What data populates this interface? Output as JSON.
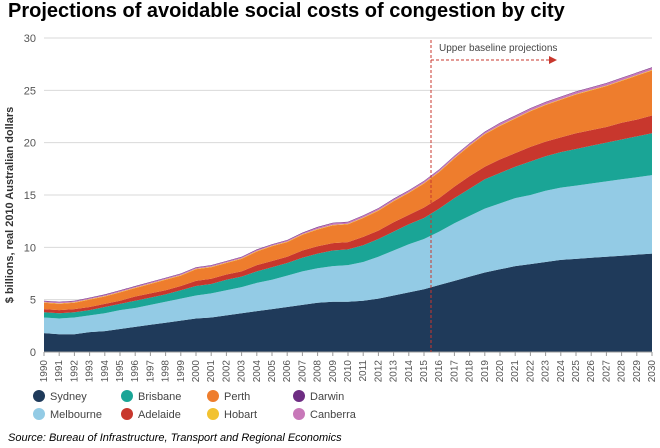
{
  "title": "Projections of avoidable social costs of congestion by city",
  "source": "Source: Bureau of Infrastructure, Transport and Regional Economics",
  "chart_data": {
    "type": "area",
    "stacked": true,
    "ylabel": "$ billions, real 2010 Australian dollars",
    "ylim": [
      0,
      30
    ],
    "yticks": [
      0,
      5,
      10,
      15,
      20,
      25,
      30
    ],
    "grid": true,
    "annotation": {
      "text": "Upper baseline projections",
      "x": "2015"
    },
    "x": [
      "1990",
      "1991",
      "1992",
      "1993",
      "1994",
      "1995",
      "1996",
      "1997",
      "1998",
      "1999",
      "2000",
      "2001",
      "2002",
      "2003",
      "2004",
      "2005",
      "2006",
      "2007",
      "2008",
      "2009",
      "2010",
      "2011",
      "2012",
      "2013",
      "2014",
      "2015",
      "2016",
      "2017",
      "2018",
      "2019",
      "2020",
      "2021",
      "2022",
      "2023",
      "2024",
      "2025",
      "2026",
      "2027",
      "2028",
      "2029",
      "2030"
    ],
    "series": [
      {
        "name": "Sydney",
        "color": "#1f3a5a",
        "values": [
          1.8,
          1.7,
          1.7,
          1.9,
          2.0,
          2.2,
          2.4,
          2.6,
          2.8,
          3.0,
          3.2,
          3.3,
          3.5,
          3.7,
          3.9,
          4.1,
          4.3,
          4.5,
          4.7,
          4.8,
          4.8,
          4.9,
          5.1,
          5.4,
          5.7,
          6.0,
          6.4,
          6.8,
          7.2,
          7.6,
          7.9,
          8.2,
          8.4,
          8.6,
          8.8,
          8.9,
          9.0,
          9.1,
          9.2,
          9.3,
          9.4
        ]
      },
      {
        "name": "Melbourne",
        "color": "#93cbe5",
        "values": [
          1.5,
          1.5,
          1.6,
          1.6,
          1.7,
          1.8,
          1.8,
          1.9,
          2.0,
          2.1,
          2.2,
          2.3,
          2.4,
          2.5,
          2.7,
          2.8,
          3.0,
          3.2,
          3.3,
          3.4,
          3.5,
          3.7,
          4.0,
          4.3,
          4.6,
          4.8,
          5.1,
          5.5,
          5.8,
          6.1,
          6.3,
          6.5,
          6.6,
          6.8,
          6.9,
          7.0,
          7.1,
          7.2,
          7.3,
          7.4,
          7.5
        ]
      },
      {
        "name": "Brisbane",
        "color": "#1aa596",
        "values": [
          0.5,
          0.5,
          0.5,
          0.5,
          0.6,
          0.6,
          0.7,
          0.7,
          0.7,
          0.8,
          0.9,
          0.9,
          1.0,
          1.0,
          1.1,
          1.2,
          1.2,
          1.3,
          1.4,
          1.5,
          1.5,
          1.6,
          1.7,
          1.8,
          1.9,
          2.0,
          2.2,
          2.4,
          2.6,
          2.8,
          2.9,
          3.0,
          3.2,
          3.3,
          3.4,
          3.5,
          3.6,
          3.7,
          3.8,
          3.9,
          4.0
        ]
      },
      {
        "name": "Adelaide",
        "color": "#c8372d",
        "values": [
          0.3,
          0.3,
          0.3,
          0.3,
          0.3,
          0.3,
          0.4,
          0.4,
          0.4,
          0.4,
          0.5,
          0.5,
          0.5,
          0.5,
          0.6,
          0.6,
          0.6,
          0.7,
          0.7,
          0.7,
          0.7,
          0.8,
          0.8,
          0.9,
          0.9,
          1.0,
          1.0,
          1.1,
          1.2,
          1.2,
          1.3,
          1.3,
          1.4,
          1.4,
          1.4,
          1.5,
          1.5,
          1.5,
          1.6,
          1.6,
          1.7
        ]
      },
      {
        "name": "Perth",
        "color": "#ee7d2d",
        "values": [
          0.6,
          0.6,
          0.6,
          0.7,
          0.7,
          0.8,
          0.8,
          0.9,
          1.0,
          1.0,
          1.1,
          1.1,
          1.1,
          1.2,
          1.3,
          1.4,
          1.4,
          1.5,
          1.6,
          1.7,
          1.7,
          1.8,
          1.9,
          2.0,
          2.1,
          2.3,
          2.5,
          2.7,
          2.9,
          3.1,
          3.2,
          3.3,
          3.4,
          3.5,
          3.6,
          3.7,
          3.8,
          3.9,
          4.0,
          4.2,
          4.3
        ]
      },
      {
        "name": "Hobart",
        "color": "#f2c230",
        "values": [
          0.05,
          0.05,
          0.05,
          0.05,
          0.05,
          0.05,
          0.05,
          0.05,
          0.05,
          0.05,
          0.05,
          0.05,
          0.05,
          0.05,
          0.05,
          0.05,
          0.05,
          0.05,
          0.05,
          0.05,
          0.05,
          0.05,
          0.05,
          0.05,
          0.05,
          0.05,
          0.05,
          0.05,
          0.05,
          0.05,
          0.05,
          0.05,
          0.05,
          0.05,
          0.05,
          0.05,
          0.05,
          0.05,
          0.05,
          0.05,
          0.05
        ]
      },
      {
        "name": "Canberra",
        "color": "#c878b9",
        "values": [
          0.1,
          0.1,
          0.1,
          0.1,
          0.1,
          0.1,
          0.1,
          0.1,
          0.1,
          0.1,
          0.1,
          0.1,
          0.1,
          0.1,
          0.1,
          0.1,
          0.1,
          0.1,
          0.15,
          0.15,
          0.15,
          0.15,
          0.15,
          0.15,
          0.15,
          0.15,
          0.15,
          0.15,
          0.15,
          0.15,
          0.2,
          0.2,
          0.2,
          0.2,
          0.2,
          0.2,
          0.2,
          0.2,
          0.2,
          0.2,
          0.2
        ]
      },
      {
        "name": "Darwin",
        "color": "#6e2d83",
        "values": [
          0.05,
          0.05,
          0.05,
          0.05,
          0.05,
          0.05,
          0.05,
          0.05,
          0.05,
          0.05,
          0.05,
          0.05,
          0.05,
          0.05,
          0.05,
          0.05,
          0.05,
          0.05,
          0.05,
          0.05,
          0.05,
          0.05,
          0.05,
          0.05,
          0.05,
          0.05,
          0.05,
          0.05,
          0.05,
          0.05,
          0.05,
          0.05,
          0.05,
          0.05,
          0.05,
          0.05,
          0.05,
          0.05,
          0.05,
          0.05,
          0.05
        ]
      }
    ],
    "legend": [
      {
        "name": "Sydney",
        "color": "#1f3a5a"
      },
      {
        "name": "Brisbane",
        "color": "#1aa596"
      },
      {
        "name": "Perth",
        "color": "#ee7d2d"
      },
      {
        "name": "Darwin",
        "color": "#6e2d83"
      },
      {
        "name": "Melbourne",
        "color": "#93cbe5"
      },
      {
        "name": "Adelaide",
        "color": "#c8372d"
      },
      {
        "name": "Hobart",
        "color": "#f2c230"
      },
      {
        "name": "Canberra",
        "color": "#c878b9"
      }
    ]
  }
}
